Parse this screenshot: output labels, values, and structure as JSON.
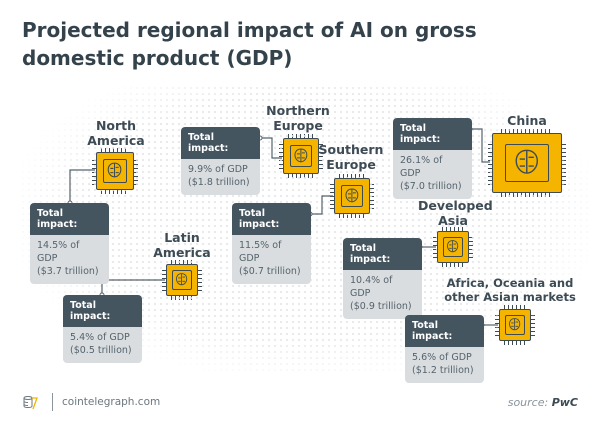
{
  "title": "Projected regional impact of AI on gross domestic product (GDP)",
  "colors": {
    "chip": "#f4b400",
    "header": "#455560",
    "box": "#d9dde0",
    "text": "#3d4b55"
  },
  "icons": {
    "chip": "ai-brain-chip-icon",
    "logo": "cointelegraph-logo-icon"
  },
  "regions": [
    {
      "name": "North America",
      "header": "Total impact:",
      "pct": "14.5% of GDP",
      "value": "($3.7 trillion)"
    },
    {
      "name": "Northern Europe",
      "header": "Total impact:",
      "pct": "9.9% of GDP",
      "value": "($1.8 trillion)"
    },
    {
      "name": "Southern Europe",
      "header": "Total impact:",
      "pct": "11.5% of GDP",
      "value": "($0.7 trillion)"
    },
    {
      "name": "China",
      "header": "Total impact:",
      "pct": "26.1% of GDP",
      "value": "($7.0 trillion)"
    },
    {
      "name": "Developed Asia",
      "header": "Total impact:",
      "pct": "10.4% of GDP",
      "value": "($0.9 trillion)"
    },
    {
      "name": "Latin America",
      "header": "Total impact:",
      "pct": "5.4% of GDP",
      "value": "($0.5 trillion)"
    },
    {
      "name": "Africa, Oceania and other Asian markets",
      "header": "Total impact:",
      "pct": "5.6% of GDP",
      "value": "($1.2 trillion)"
    }
  ],
  "footer": {
    "site": "cointelegraph.com",
    "source_prefix": "source:",
    "source": "PwC"
  }
}
